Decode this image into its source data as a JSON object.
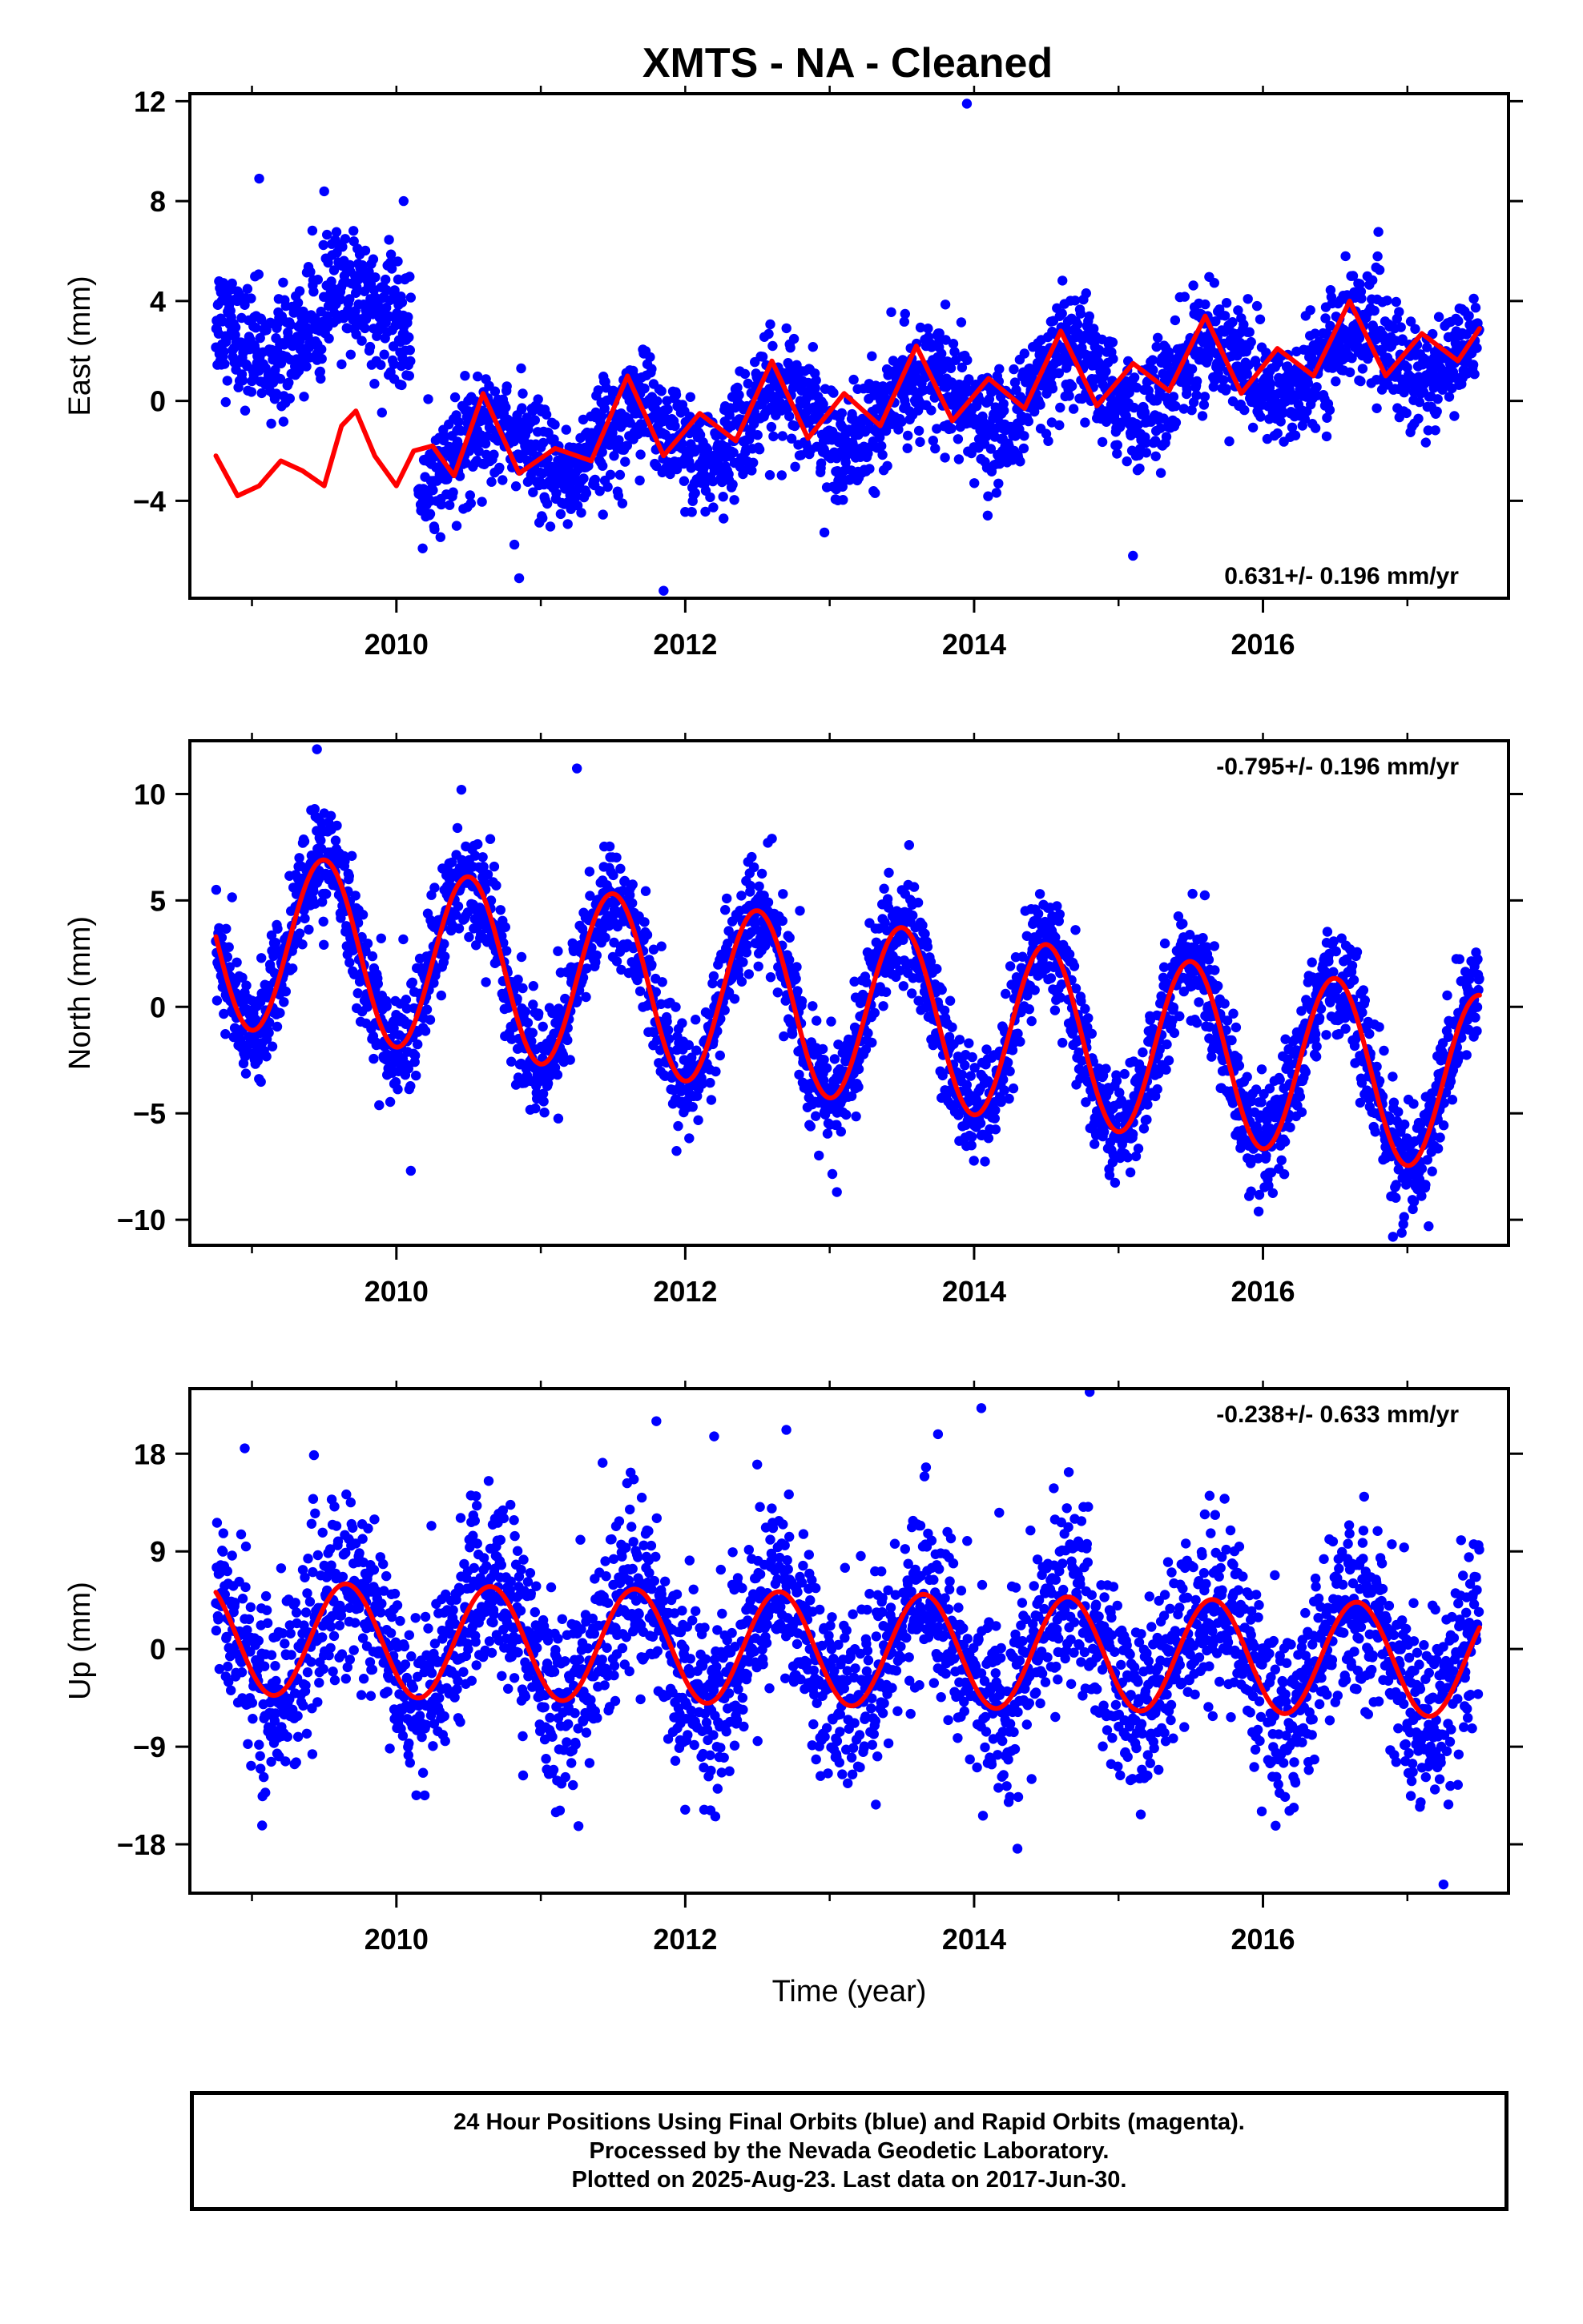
{
  "title": "XMTS  - NA - Cleaned",
  "colors": {
    "data": "#0000ff",
    "model": "#ff0000",
    "frame": "#000000"
  },
  "footer": {
    "line1": "24 Hour Positions Using Final Orbits (blue) and Rapid Orbits (magenta).",
    "line2": "Processed by the Nevada Geodetic Laboratory.",
    "line3": "Plotted on 2025-Aug-23. Last data on 2017-Jun-30."
  },
  "chart_data": [
    {
      "type": "scatter",
      "title": "XMTS  - NA - Cleaned",
      "ylabel": "East (mm)",
      "xlabel": "",
      "xlim": [
        2008.57,
        2017.7
      ],
      "ylim": [
        -7.9,
        12.3
      ],
      "xticks": [
        2010,
        2012,
        2014,
        2016
      ],
      "xtick_labels": [
        "2010",
        "2012",
        "2014",
        "2016"
      ],
      "yticks": [
        -4,
        0,
        4,
        8,
        12
      ],
      "ytick_labels": [
        "−4",
        "0",
        "4",
        "8",
        "12"
      ],
      "rate_label": "0.631+/- 0.196 mm/yr",
      "rate_position": "bottom-right",
      "data_span": [
        2008.75,
        2017.5
      ],
      "gap": [
        2010.1,
        2010.15
      ],
      "series": [
        {
          "name": "Final Orbits (blue)",
          "kind": "points",
          "color": "#0000ff",
          "segments": [
            {
              "x0": 2008.75,
              "x1": 2010.1,
              "offset": 2.5,
              "trend": 0.9,
              "amp": 1.1,
              "noise": 1.2
            },
            {
              "x0": 2010.15,
              "x1": 2017.5,
              "offset": -2.4,
              "trend": 0.63,
              "amp": 1.3,
              "noise": 1.1
            }
          ],
          "outliers": [
            [
              2009.05,
              8.9
            ],
            [
              2010.05,
              8.0
            ],
            [
              2013.95,
              11.9
            ],
            [
              2010.85,
              -7.1
            ],
            [
              2011.85,
              -7.6
            ],
            [
              2015.1,
              -6.2
            ]
          ]
        },
        {
          "name": "Model",
          "kind": "line",
          "color": "#ff0000",
          "points": [
            [
              2008.75,
              -2.2
            ],
            [
              2008.9,
              -3.8
            ],
            [
              2009.05,
              -3.4
            ],
            [
              2009.2,
              -2.4
            ],
            [
              2009.35,
              -2.8
            ],
            [
              2009.5,
              -3.4
            ],
            [
              2009.62,
              -1.0
            ],
            [
              2009.72,
              -0.4
            ],
            [
              2009.85,
              -2.2
            ],
            [
              2010.0,
              -3.4
            ],
            [
              2010.12,
              -2.0
            ],
            [
              2010.25,
              -1.8
            ],
            [
              2010.4,
              -3.0
            ],
            [
              2010.6,
              0.3
            ],
            [
              2010.85,
              -2.9
            ],
            [
              2011.1,
              -1.9
            ],
            [
              2011.35,
              -2.4
            ],
            [
              2011.6,
              1.0
            ],
            [
              2011.85,
              -2.2
            ],
            [
              2012.1,
              -0.5
            ],
            [
              2012.35,
              -1.6
            ],
            [
              2012.6,
              1.6
            ],
            [
              2012.85,
              -1.5
            ],
            [
              2013.1,
              0.3
            ],
            [
              2013.35,
              -1.0
            ],
            [
              2013.6,
              2.2
            ],
            [
              2013.85,
              -0.8
            ],
            [
              2014.1,
              0.9
            ],
            [
              2014.35,
              -0.3
            ],
            [
              2014.6,
              2.8
            ],
            [
              2014.85,
              -0.2
            ],
            [
              2015.1,
              1.5
            ],
            [
              2015.35,
              0.4
            ],
            [
              2015.6,
              3.4
            ],
            [
              2015.85,
              0.3
            ],
            [
              2016.1,
              2.1
            ],
            [
              2016.35,
              1.0
            ],
            [
              2016.6,
              4.0
            ],
            [
              2016.85,
              1.0
            ],
            [
              2017.1,
              2.7
            ],
            [
              2017.35,
              1.6
            ],
            [
              2017.5,
              2.9
            ]
          ]
        }
      ]
    },
    {
      "type": "scatter",
      "title": "",
      "ylabel": "North (mm)",
      "xlabel": "",
      "xlim": [
        2008.57,
        2017.7
      ],
      "ylim": [
        -11.2,
        12.5
      ],
      "xticks": [
        2010,
        2012,
        2014,
        2016
      ],
      "xtick_labels": [
        "2010",
        "2012",
        "2014",
        "2016"
      ],
      "yticks": [
        -10,
        -5,
        0,
        5,
        10
      ],
      "ytick_labels": [
        "−10",
        "−5",
        "0",
        "5",
        "10"
      ],
      "rate_label": "-0.795+/- 0.196 mm/yr",
      "rate_position": "top-right",
      "data_span": [
        2008.75,
        2017.5
      ],
      "series": [
        {
          "name": "Final Orbits (blue)",
          "kind": "points",
          "color": "#0000ff",
          "model": {
            "offset": 3.3,
            "trend": -0.795,
            "t0": 2008.75,
            "amp": 4.2,
            "phase_peak": 0.5,
            "noise": 1.3
          },
          "outliers": [
            [
              2009.45,
              12.1
            ],
            [
              2011.25,
              11.2
            ],
            [
              2010.45,
              10.2
            ],
            [
              2010.1,
              -7.7
            ],
            [
              2013.05,
              -8.7
            ],
            [
              2016.9,
              -10.8
            ],
            [
              2012.6,
              7.9
            ],
            [
              2013.55,
              7.6
            ]
          ]
        },
        {
          "name": "Model",
          "kind": "line",
          "color": "#ff0000",
          "model": {
            "offset": 3.3,
            "trend": -0.795,
            "t0": 2008.75,
            "amp": 4.2,
            "phase_peak": 0.5
          }
        }
      ]
    },
    {
      "type": "scatter",
      "title": "",
      "ylabel": "Up (mm)",
      "xlabel": "Time (year)",
      "xlim": [
        2008.57,
        2017.7
      ],
      "ylim": [
        -22.5,
        24
      ],
      "xticks": [
        2010,
        2012,
        2014,
        2016
      ],
      "xtick_labels": [
        "2010",
        "2012",
        "2014",
        "2016"
      ],
      "yticks": [
        -18,
        -9,
        0,
        9,
        18
      ],
      "ytick_labels": [
        "−18",
        "−9",
        "0",
        "9",
        "18"
      ],
      "rate_label": "-0.238+/- 0.633 mm/yr",
      "rate_position": "top-right",
      "data_span": [
        2008.75,
        2017.5
      ],
      "series": [
        {
          "name": "Final Orbits (blue)",
          "kind": "points",
          "color": "#0000ff",
          "model": {
            "offset": 0.0,
            "trend": -0.24,
            "t0": 2013.0,
            "amp": 5.2,
            "phase_peak": 0.65,
            "noise": 4.2
          },
          "outliers": [
            [
              2014.8,
              23.7
            ],
            [
              2014.05,
              22.2
            ],
            [
              2011.8,
              21.0
            ],
            [
              2012.7,
              20.2
            ],
            [
              2012.2,
              19.6
            ],
            [
              2013.75,
              19.8
            ],
            [
              2017.25,
              -21.7
            ],
            [
              2014.3,
              -18.4
            ],
            [
              2008.95,
              18.5
            ]
          ]
        },
        {
          "name": "Model",
          "kind": "line",
          "color": "#ff0000",
          "model": {
            "offset": 0.0,
            "trend": -0.24,
            "t0": 2013.0,
            "amp": 5.2,
            "phase_peak": 0.65
          }
        }
      ]
    }
  ]
}
